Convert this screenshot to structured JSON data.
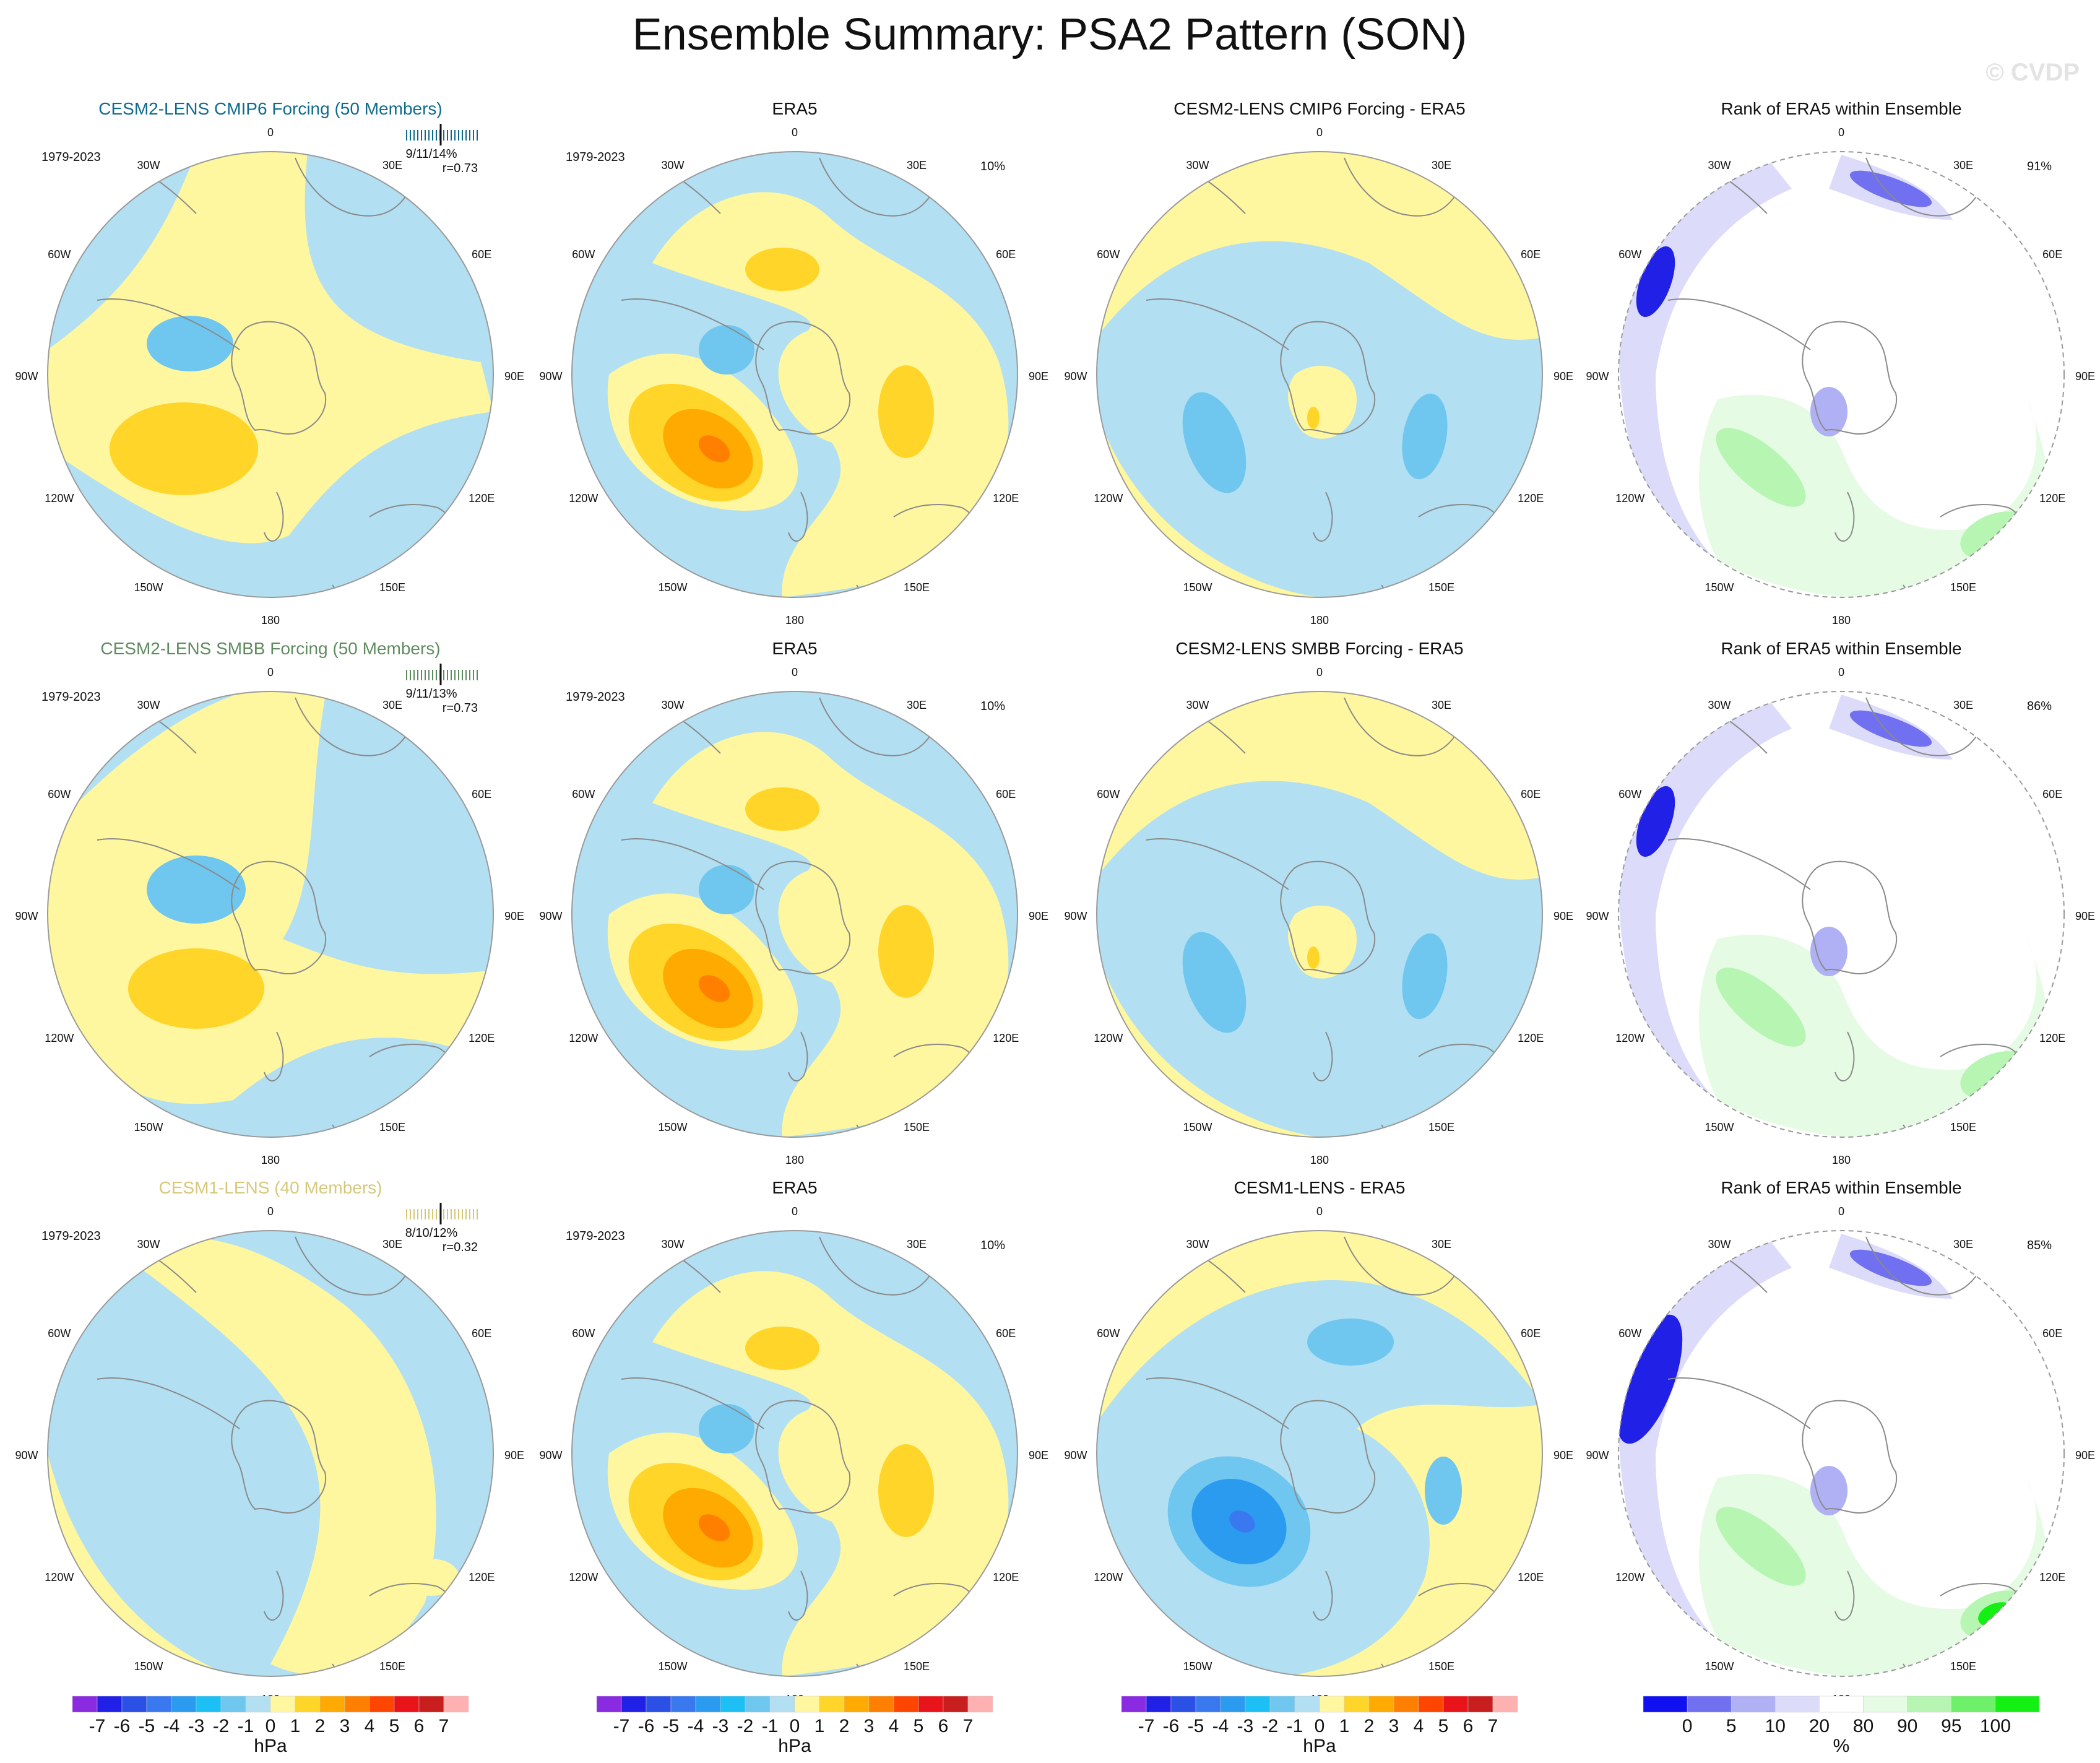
{
  "figure": {
    "title": "Ensemble Summary: PSA2 Pattern (SON)",
    "watermark": "© CVDP",
    "years": "1979-2023"
  },
  "colors": {
    "land_outline": "#7f7f7f",
    "circle_edge": "#9a9a9a",
    "neg_fill": "#b2dff2",
    "pos_fill": "#fff79f",
    "rank_low_fill": "#dcdcfa",
    "rank_high_fill": "#e6fbe4",
    "row_title_colors": [
      "#0f6b8c",
      "#5f8c5f",
      "#d7c87a"
    ]
  },
  "longitude_labels": [
    "0",
    "30E",
    "60E",
    "90E",
    "120E",
    "150E",
    "180",
    "150W",
    "120W",
    "90W",
    "60W",
    "30W"
  ],
  "rows": [
    {
      "model_title": "CESM2-LENS CMIP6 Forcing (50 Members)",
      "model_stats": "9/11/14%",
      "model_corr": "r=0.73",
      "obs_title": "ERA5",
      "obs_stat": "10%",
      "diff_title": "CESM2-LENS CMIP6 Forcing - ERA5",
      "rank_title": "Rank of ERA5 within Ensemble",
      "rank_stat": "91%"
    },
    {
      "model_title": "CESM2-LENS SMBB Forcing (50 Members)",
      "model_stats": "9/11/13%",
      "model_corr": "r=0.73",
      "obs_title": "ERA5",
      "obs_stat": "10%",
      "diff_title": "CESM2-LENS SMBB Forcing - ERA5",
      "rank_title": "Rank of ERA5 within Ensemble",
      "rank_stat": "86%"
    },
    {
      "model_title": "CESM1-LENS (40 Members)",
      "model_stats": "8/10/12%",
      "model_corr": "r=0.32",
      "obs_title": "ERA5",
      "obs_stat": "10%",
      "diff_title": "CESM1-LENS - ERA5",
      "rank_title": "Rank of ERA5 within Ensemble",
      "rank_stat": "85%"
    }
  ],
  "colorbar_hpa": {
    "unit": "hPa",
    "labels": [
      "-7",
      "-6",
      "-5",
      "-4",
      "-3",
      "-2",
      "-1",
      "0",
      "1",
      "2",
      "3",
      "4",
      "5",
      "6",
      "7"
    ],
    "colors": [
      "#8a2be2",
      "#2020e6",
      "#2b50e6",
      "#3a78f0",
      "#2b9bf0",
      "#1cc0f5",
      "#6fc6ee",
      "#b2dff2",
      "#fff79f",
      "#ffd52a",
      "#ffaa00",
      "#ff7f00",
      "#ff4500",
      "#e8141a",
      "#c81e1e",
      "#ffb0b0"
    ]
  },
  "colorbar_pct": {
    "unit": "%",
    "labels": [
      "0",
      "5",
      "10",
      "20",
      "80",
      "90",
      "95",
      "100"
    ],
    "colors": [
      "#1010f0",
      "#7070f0",
      "#b0b0f5",
      "#dcdcfa",
      "#ffffff",
      "#e6fbe4",
      "#b7f5b2",
      "#6ef06a",
      "#14f014"
    ]
  }
}
